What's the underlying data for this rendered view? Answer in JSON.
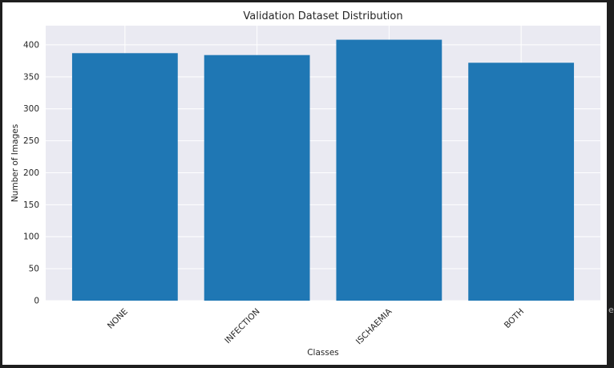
{
  "chart_data": {
    "type": "bar",
    "title": "Validation Dataset Distribution",
    "xlabel": "Classes",
    "ylabel": "Number of Images",
    "categories": [
      "NONE",
      "INFECTION",
      "ISCHAEMIA",
      "BOTH"
    ],
    "values": [
      387,
      384,
      408,
      372
    ],
    "ylim": [
      0,
      430
    ],
    "yticks": [
      0,
      50,
      100,
      150,
      200,
      250,
      300,
      350,
      400
    ],
    "grid": true,
    "bar_color": "#1f77b4",
    "plot_background": "#eaeaf2",
    "grid_color": "#ffffff"
  },
  "edge_glyph": "e"
}
